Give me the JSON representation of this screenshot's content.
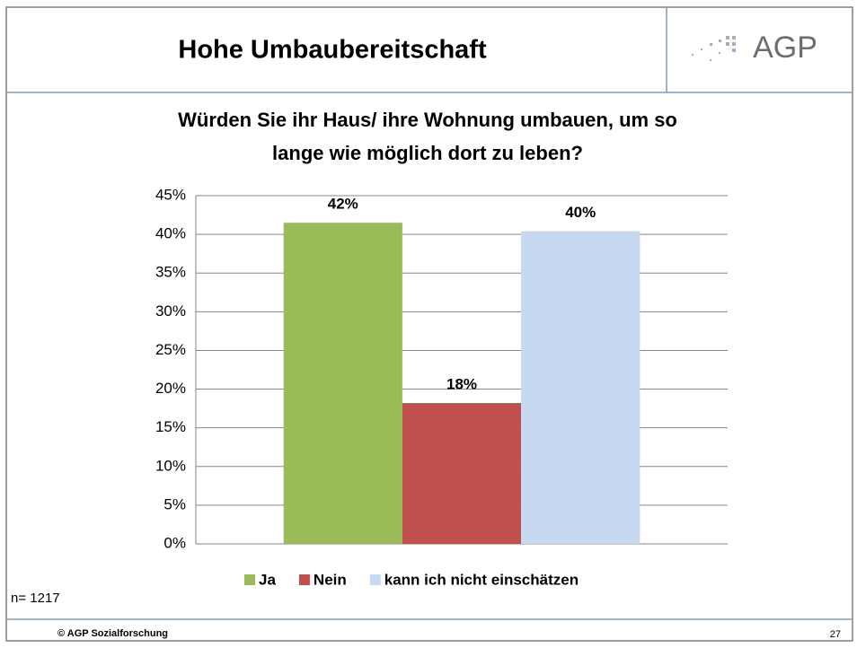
{
  "slide": {
    "title": "Hohe Umbaubereitschaft",
    "logo": "AGP",
    "note": "n= 1217",
    "footer": "© AGP Sozialforschung",
    "page": "27"
  },
  "chart_data": {
    "type": "bar",
    "title": "Würden Sie ihr Haus/ ihre Wohnung umbauen, um so",
    "subtitle": "lange wie möglich dort zu leben?",
    "categories": [
      null
    ],
    "series": [
      {
        "name": "Ja",
        "color": "#9bbb59",
        "values": [
          41.5
        ],
        "value_labels": [
          "42%"
        ]
      },
      {
        "name": "Nein",
        "color": "#c0504d",
        "values": [
          18.2
        ],
        "value_labels": [
          "18%"
        ]
      },
      {
        "name": "kann ich nicht einschätzen",
        "color": "#c6d9f1",
        "values": [
          40.4
        ],
        "value_labels": [
          "40%"
        ]
      }
    ],
    "ylim": [
      0,
      45
    ],
    "yticks": [
      {
        "value": 0,
        "label": "0%"
      },
      {
        "value": 5,
        "label": "5%"
      },
      {
        "value": 10,
        "label": "10%"
      },
      {
        "value": 15,
        "label": "15%"
      },
      {
        "value": 20,
        "label": "20%"
      },
      {
        "value": 25,
        "label": "25%"
      },
      {
        "value": 30,
        "label": "30%"
      },
      {
        "value": 35,
        "label": "35%"
      },
      {
        "value": 40,
        "label": "40%"
      },
      {
        "value": 45,
        "label": "45%"
      }
    ],
    "grid": true,
    "legend": "bottom"
  }
}
